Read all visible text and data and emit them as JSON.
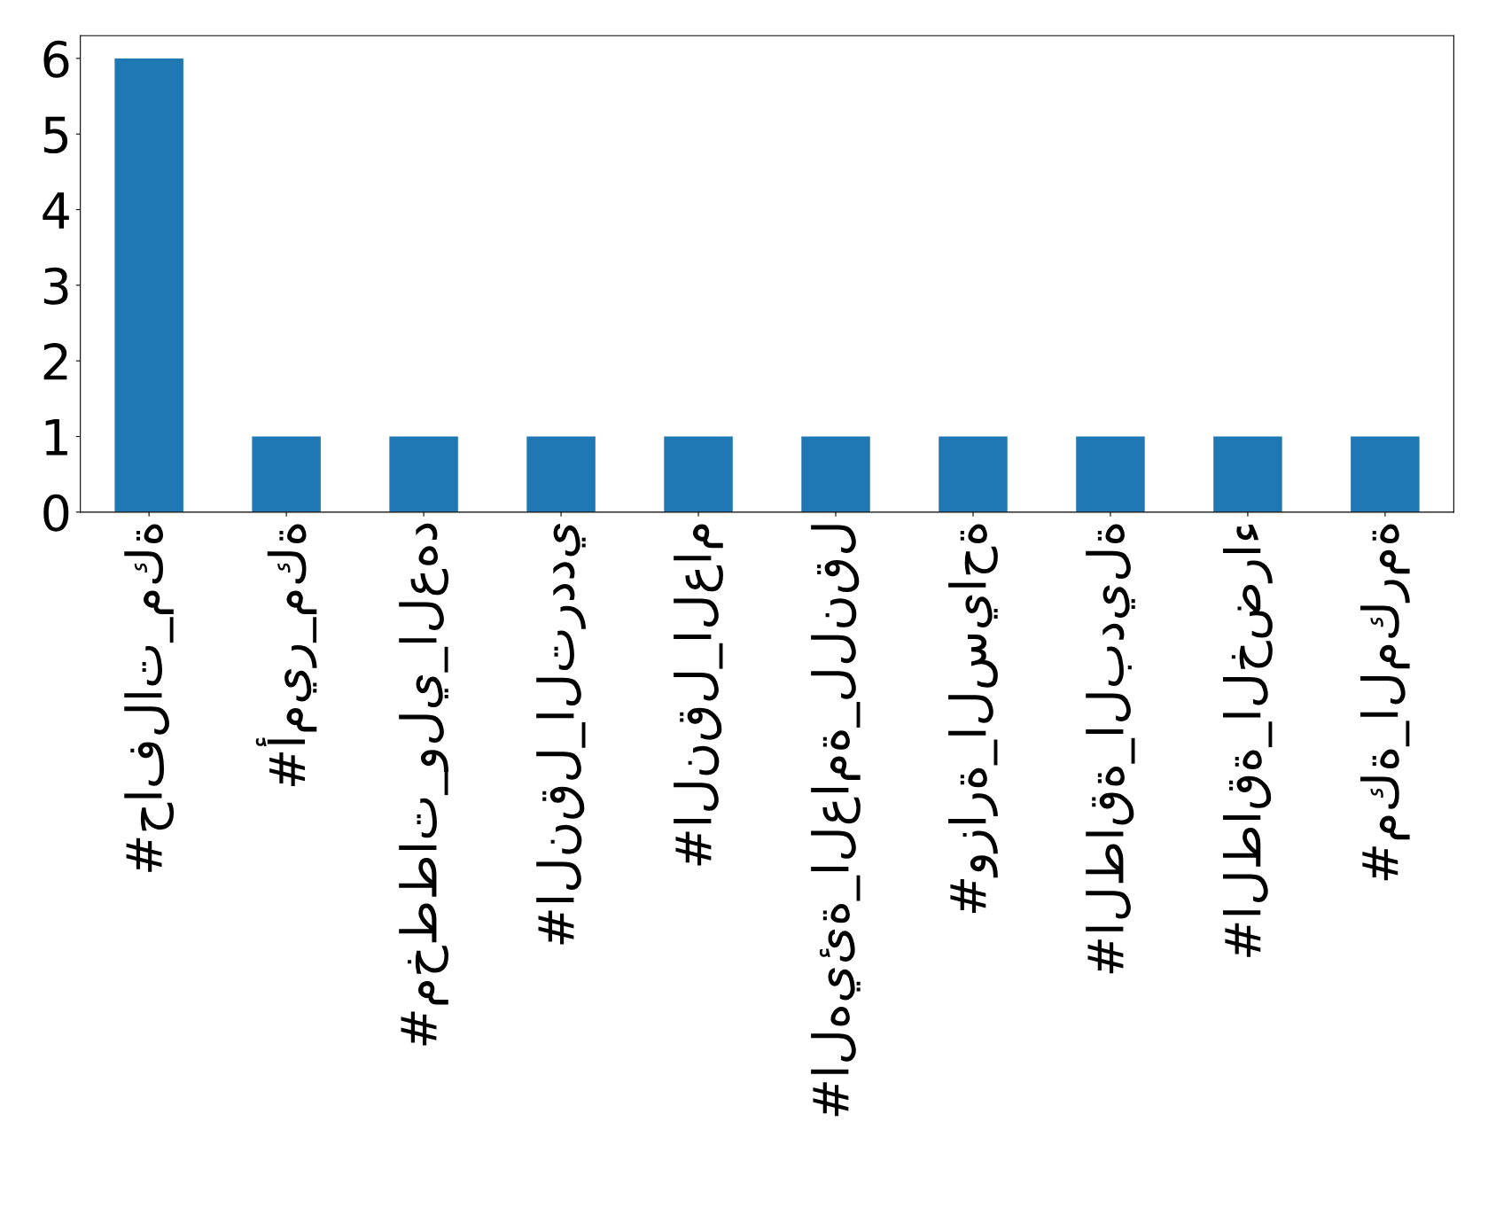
{
  "chart_data": {
    "type": "bar",
    "categories": [
      "#حافلات_مكة",
      "#أمير_مكة",
      "#مخططات_ولي_العهد",
      "#النقل_الترددي",
      "#النقل_العام",
      "#الهيئة_العامة_للنقل",
      "#وزارة_السياحة",
      "#الطاقة_البديلة",
      "#الطاقة_الخضراء",
      "#مكة_المكرمة"
    ],
    "values": [
      6,
      1,
      1,
      1,
      1,
      1,
      1,
      1,
      1,
      1
    ],
    "color": "#1f77b4",
    "ylim": [
      0,
      6.3
    ],
    "yticks": [
      0,
      1,
      2,
      3,
      4,
      5,
      6
    ],
    "grid": false,
    "legend": false
  }
}
